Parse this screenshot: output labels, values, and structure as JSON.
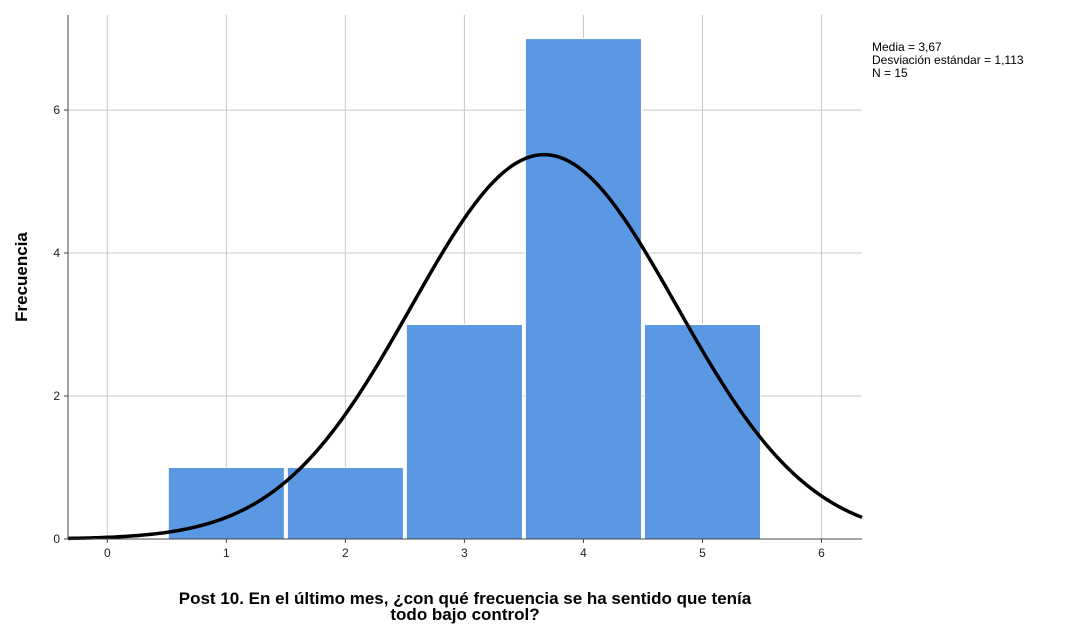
{
  "chart_data": {
    "type": "histogram",
    "bins": [
      0.5,
      1.5,
      2.5,
      3.5,
      4.5,
      5.5
    ],
    "counts": [
      1,
      1,
      3,
      7,
      3
    ],
    "color": "#5a98e3",
    "curve_color": "#000000",
    "normal": {
      "mean": 3.67,
      "sd": 1.113,
      "n": 15
    },
    "y_label": "Frecuencia",
    "x_label": [
      "Post 10. En el último mes, ¿con qué frecuencia se ha sentido que tenía",
      "todo bajo control?"
    ],
    "annotation": [
      "Media = 3,67",
      "Desviación estándar = 1,113",
      "N = 15"
    ],
    "xlim": [
      -0.33,
      6.34
    ],
    "ylim": [
      0,
      7.33
    ],
    "xticks": [
      0,
      1,
      2,
      3,
      4,
      5,
      6
    ],
    "yticks": [
      0,
      2,
      4,
      6
    ],
    "grid": true
  }
}
